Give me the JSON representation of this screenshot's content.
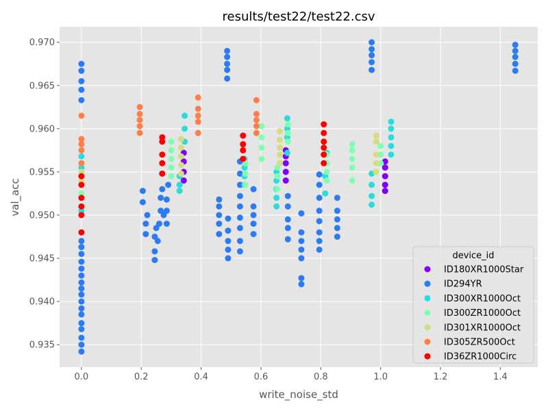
{
  "chart_data": {
    "type": "scatter",
    "title": "results/test22/test22.csv",
    "xlabel": "write_noise_std",
    "ylabel": "val_acc",
    "xlim": [
      -0.073,
      1.525
    ],
    "ylim": [
      0.9324,
      0.9718
    ],
    "xticks": [
      0.0,
      0.2,
      0.4,
      0.6,
      0.8,
      1.0,
      1.2,
      1.4
    ],
    "xtick_labels": [
      "0.0",
      "0.2",
      "0.4",
      "0.6",
      "0.8",
      "1.0",
      "1.2",
      "1.4"
    ],
    "yticks": [
      0.935,
      0.94,
      0.945,
      0.95,
      0.955,
      0.96,
      0.965,
      0.97
    ],
    "ytick_labels": [
      "0.935",
      "0.940",
      "0.945",
      "0.950",
      "0.955",
      "0.960",
      "0.965",
      "0.970"
    ],
    "grid": true,
    "legend": {
      "title": "device_id",
      "placement": "lower-right"
    },
    "series": [
      {
        "name": "ID180XR1000Star",
        "color": "#8000ff",
        "points": [
          [
            0.342,
            0.954
          ],
          [
            0.342,
            0.955
          ],
          [
            0.342,
            0.9562
          ],
          [
            0.342,
            0.9572
          ],
          [
            0.683,
            0.954
          ],
          [
            0.683,
            0.955
          ],
          [
            0.683,
            0.956
          ],
          [
            0.683,
            0.9568
          ],
          [
            0.683,
            0.9575
          ],
          [
            1.015,
            0.9528
          ],
          [
            1.015,
            0.9535
          ],
          [
            1.015,
            0.9545
          ],
          [
            1.015,
            0.9555
          ],
          [
            1.015,
            0.9562
          ]
        ]
      },
      {
        "name": "ID294YR",
        "color": "#2c7bf2",
        "points": [
          [
            0.0,
            0.9342
          ],
          [
            0.0,
            0.935
          ],
          [
            0.0,
            0.9358
          ],
          [
            0.0,
            0.9368
          ],
          [
            0.0,
            0.9375
          ],
          [
            0.0,
            0.9385
          ],
          [
            0.0,
            0.9392
          ],
          [
            0.0,
            0.94
          ],
          [
            0.0,
            0.9408
          ],
          [
            0.0,
            0.9415
          ],
          [
            0.0,
            0.9422
          ],
          [
            0.0,
            0.943
          ],
          [
            0.0,
            0.9438
          ],
          [
            0.0,
            0.9446
          ],
          [
            0.0,
            0.9455
          ],
          [
            0.0,
            0.9463
          ],
          [
            0.0,
            0.947
          ],
          [
            0.0,
            0.9633
          ],
          [
            0.0,
            0.9645
          ],
          [
            0.0,
            0.9655
          ],
          [
            0.0,
            0.9667
          ],
          [
            0.0,
            0.9675
          ],
          [
            0.205,
            0.9515
          ],
          [
            0.205,
            0.9528
          ],
          [
            0.215,
            0.9478
          ],
          [
            0.215,
            0.949
          ],
          [
            0.22,
            0.95
          ],
          [
            0.245,
            0.9448
          ],
          [
            0.245,
            0.9458
          ],
          [
            0.245,
            0.9475
          ],
          [
            0.25,
            0.9485
          ],
          [
            0.255,
            0.947
          ],
          [
            0.26,
            0.949
          ],
          [
            0.265,
            0.9505
          ],
          [
            0.265,
            0.952
          ],
          [
            0.27,
            0.953
          ],
          [
            0.275,
            0.95
          ],
          [
            0.285,
            0.949
          ],
          [
            0.285,
            0.9505
          ],
          [
            0.285,
            0.9518
          ],
          [
            0.29,
            0.9535
          ],
          [
            0.46,
            0.9478
          ],
          [
            0.46,
            0.949
          ],
          [
            0.46,
            0.95
          ],
          [
            0.46,
            0.951
          ],
          [
            0.46,
            0.9518
          ],
          [
            0.49,
            0.945
          ],
          [
            0.49,
            0.946
          ],
          [
            0.49,
            0.947
          ],
          [
            0.49,
            0.9482
          ],
          [
            0.49,
            0.9496
          ],
          [
            0.487,
            0.9658
          ],
          [
            0.487,
            0.9668
          ],
          [
            0.487,
            0.9675
          ],
          [
            0.487,
            0.9683
          ],
          [
            0.487,
            0.969
          ],
          [
            0.53,
            0.9458
          ],
          [
            0.53,
            0.947
          ],
          [
            0.53,
            0.9485
          ],
          [
            0.53,
            0.9497
          ],
          [
            0.53,
            0.951
          ],
          [
            0.53,
            0.9522
          ],
          [
            0.53,
            0.9535
          ],
          [
            0.53,
            0.9548
          ],
          [
            0.53,
            0.9562
          ],
          [
            0.575,
            0.9478
          ],
          [
            0.575,
            0.949
          ],
          [
            0.575,
            0.95
          ],
          [
            0.575,
            0.951
          ],
          [
            0.575,
            0.953
          ],
          [
            0.69,
            0.9472
          ],
          [
            0.69,
            0.9485
          ],
          [
            0.69,
            0.9495
          ],
          [
            0.69,
            0.951
          ],
          [
            0.69,
            0.9522
          ],
          [
            0.735,
            0.942
          ],
          [
            0.735,
            0.9427
          ],
          [
            0.735,
            0.945
          ],
          [
            0.735,
            0.946
          ],
          [
            0.735,
            0.947
          ],
          [
            0.735,
            0.948
          ],
          [
            0.735,
            0.9502
          ],
          [
            0.795,
            0.946
          ],
          [
            0.795,
            0.947
          ],
          [
            0.795,
            0.948
          ],
          [
            0.795,
            0.9493
          ],
          [
            0.795,
            0.9505
          ],
          [
            0.795,
            0.952
          ],
          [
            0.795,
            0.9535
          ],
          [
            0.795,
            0.9547
          ],
          [
            0.855,
            0.9475
          ],
          [
            0.855,
            0.9485
          ],
          [
            0.855,
            0.9495
          ],
          [
            0.855,
            0.9505
          ],
          [
            0.855,
            0.952
          ],
          [
            0.97,
            0.9668
          ],
          [
            0.97,
            0.9677
          ],
          [
            0.97,
            0.9685
          ],
          [
            0.97,
            0.9692
          ],
          [
            0.97,
            0.97
          ],
          [
            1.45,
            0.9667
          ],
          [
            1.45,
            0.9675
          ],
          [
            1.45,
            0.9683
          ],
          [
            1.45,
            0.969
          ],
          [
            1.45,
            0.9697
          ]
        ]
      },
      {
        "name": "ID300XR1000Oct",
        "color": "#2adddd",
        "points": [
          [
            0.0,
            0.948
          ],
          [
            0.0,
            0.9505
          ],
          [
            0.0,
            0.952
          ],
          [
            0.0,
            0.9535
          ],
          [
            0.0,
            0.9555
          ],
          [
            0.0,
            0.9568
          ],
          [
            0.328,
            0.9528
          ],
          [
            0.328,
            0.9535
          ],
          [
            0.328,
            0.9545
          ],
          [
            0.345,
            0.9585
          ],
          [
            0.345,
            0.96
          ],
          [
            0.345,
            0.9615
          ],
          [
            0.545,
            0.9535
          ],
          [
            0.545,
            0.9545
          ],
          [
            0.545,
            0.9555
          ],
          [
            0.545,
            0.9565
          ],
          [
            0.652,
            0.951
          ],
          [
            0.652,
            0.952
          ],
          [
            0.652,
            0.953
          ],
          [
            0.652,
            0.954
          ],
          [
            0.652,
            0.955
          ],
          [
            0.688,
            0.9572
          ],
          [
            0.688,
            0.959
          ],
          [
            0.688,
            0.96
          ],
          [
            0.688,
            0.9612
          ],
          [
            0.815,
            0.9525
          ],
          [
            0.815,
            0.9545
          ],
          [
            0.82,
            0.956
          ],
          [
            0.82,
            0.9572
          ],
          [
            0.97,
            0.9512
          ],
          [
            0.97,
            0.9522
          ],
          [
            0.97,
            0.9535
          ],
          [
            0.97,
            0.9548
          ],
          [
            1.035,
            0.957
          ],
          [
            1.035,
            0.958
          ],
          [
            1.035,
            0.959
          ],
          [
            1.035,
            0.96
          ],
          [
            1.035,
            0.9608
          ]
        ]
      },
      {
        "name": "ID300ZR1000Oct",
        "color": "#80ffb4",
        "points": [
          [
            0.0,
            0.9525
          ],
          [
            0.0,
            0.9545
          ],
          [
            0.0,
            0.956
          ],
          [
            0.3,
            0.9545
          ],
          [
            0.3,
            0.9555
          ],
          [
            0.3,
            0.9565
          ],
          [
            0.3,
            0.9575
          ],
          [
            0.3,
            0.9585
          ],
          [
            0.548,
            0.9535
          ],
          [
            0.548,
            0.9548
          ],
          [
            0.548,
            0.956
          ],
          [
            0.602,
            0.9565
          ],
          [
            0.602,
            0.9578
          ],
          [
            0.602,
            0.959
          ],
          [
            0.602,
            0.9603
          ],
          [
            0.655,
            0.953
          ],
          [
            0.655,
            0.9545
          ],
          [
            0.655,
            0.9555
          ],
          [
            0.69,
            0.9585
          ],
          [
            0.69,
            0.9595
          ],
          [
            0.69,
            0.9605
          ],
          [
            0.82,
            0.954
          ],
          [
            0.82,
            0.955
          ],
          [
            0.82,
            0.956
          ],
          [
            0.82,
            0.957
          ],
          [
            0.905,
            0.954
          ],
          [
            0.905,
            0.9555
          ],
          [
            0.905,
            0.9565
          ],
          [
            0.905,
            0.9575
          ],
          [
            0.905,
            0.9582
          ],
          [
            1.0,
            0.956
          ],
          [
            1.0,
            0.957
          ],
          [
            1.0,
            0.958
          ]
        ]
      },
      {
        "name": "ID301XR1000Oct",
        "color": "#d4dd80",
        "points": [
          [
            0.0,
            0.954
          ],
          [
            0.0,
            0.955
          ],
          [
            0.333,
            0.9548
          ],
          [
            0.333,
            0.9558
          ],
          [
            0.333,
            0.9568
          ],
          [
            0.333,
            0.9578
          ],
          [
            0.333,
            0.9588
          ],
          [
            0.663,
            0.956
          ],
          [
            0.663,
            0.957
          ],
          [
            0.663,
            0.9578
          ],
          [
            0.663,
            0.9587
          ],
          [
            0.663,
            0.9597
          ],
          [
            0.985,
            0.955
          ],
          [
            0.985,
            0.956
          ],
          [
            0.985,
            0.957
          ],
          [
            0.985,
            0.9585
          ],
          [
            0.985,
            0.9592
          ]
        ]
      },
      {
        "name": "ID305ZR500Oct",
        "color": "#ff7f4a",
        "points": [
          [
            0.0,
            0.956
          ],
          [
            0.0,
            0.9575
          ],
          [
            0.0,
            0.9582
          ],
          [
            0.0,
            0.9588
          ],
          [
            0.0,
            0.9615
          ],
          [
            0.195,
            0.9595
          ],
          [
            0.195,
            0.9603
          ],
          [
            0.195,
            0.961
          ],
          [
            0.195,
            0.9617
          ],
          [
            0.195,
            0.9625
          ],
          [
            0.39,
            0.9595
          ],
          [
            0.39,
            0.9608
          ],
          [
            0.39,
            0.9615
          ],
          [
            0.39,
            0.9623
          ],
          [
            0.39,
            0.9636
          ],
          [
            0.585,
            0.9595
          ],
          [
            0.585,
            0.9603
          ],
          [
            0.585,
            0.961
          ],
          [
            0.585,
            0.9617
          ],
          [
            0.585,
            0.9633
          ]
        ]
      },
      {
        "name": "ID36ZR1000Circ",
        "color": "#ff0000",
        "points": [
          [
            0.0,
            0.948
          ],
          [
            0.0,
            0.95
          ],
          [
            0.0,
            0.951
          ],
          [
            0.0,
            0.952
          ],
          [
            0.0,
            0.9535
          ],
          [
            0.0,
            0.9545
          ],
          [
            0.27,
            0.9548
          ],
          [
            0.27,
            0.956
          ],
          [
            0.27,
            0.957
          ],
          [
            0.27,
            0.9585
          ],
          [
            0.27,
            0.959
          ],
          [
            0.54,
            0.9565
          ],
          [
            0.54,
            0.9575
          ],
          [
            0.54,
            0.9582
          ],
          [
            0.54,
            0.9592
          ],
          [
            0.81,
            0.956
          ],
          [
            0.81,
            0.957
          ],
          [
            0.81,
            0.9578
          ],
          [
            0.81,
            0.9585
          ],
          [
            0.81,
            0.9595
          ],
          [
            0.81,
            0.9605
          ]
        ]
      }
    ]
  }
}
